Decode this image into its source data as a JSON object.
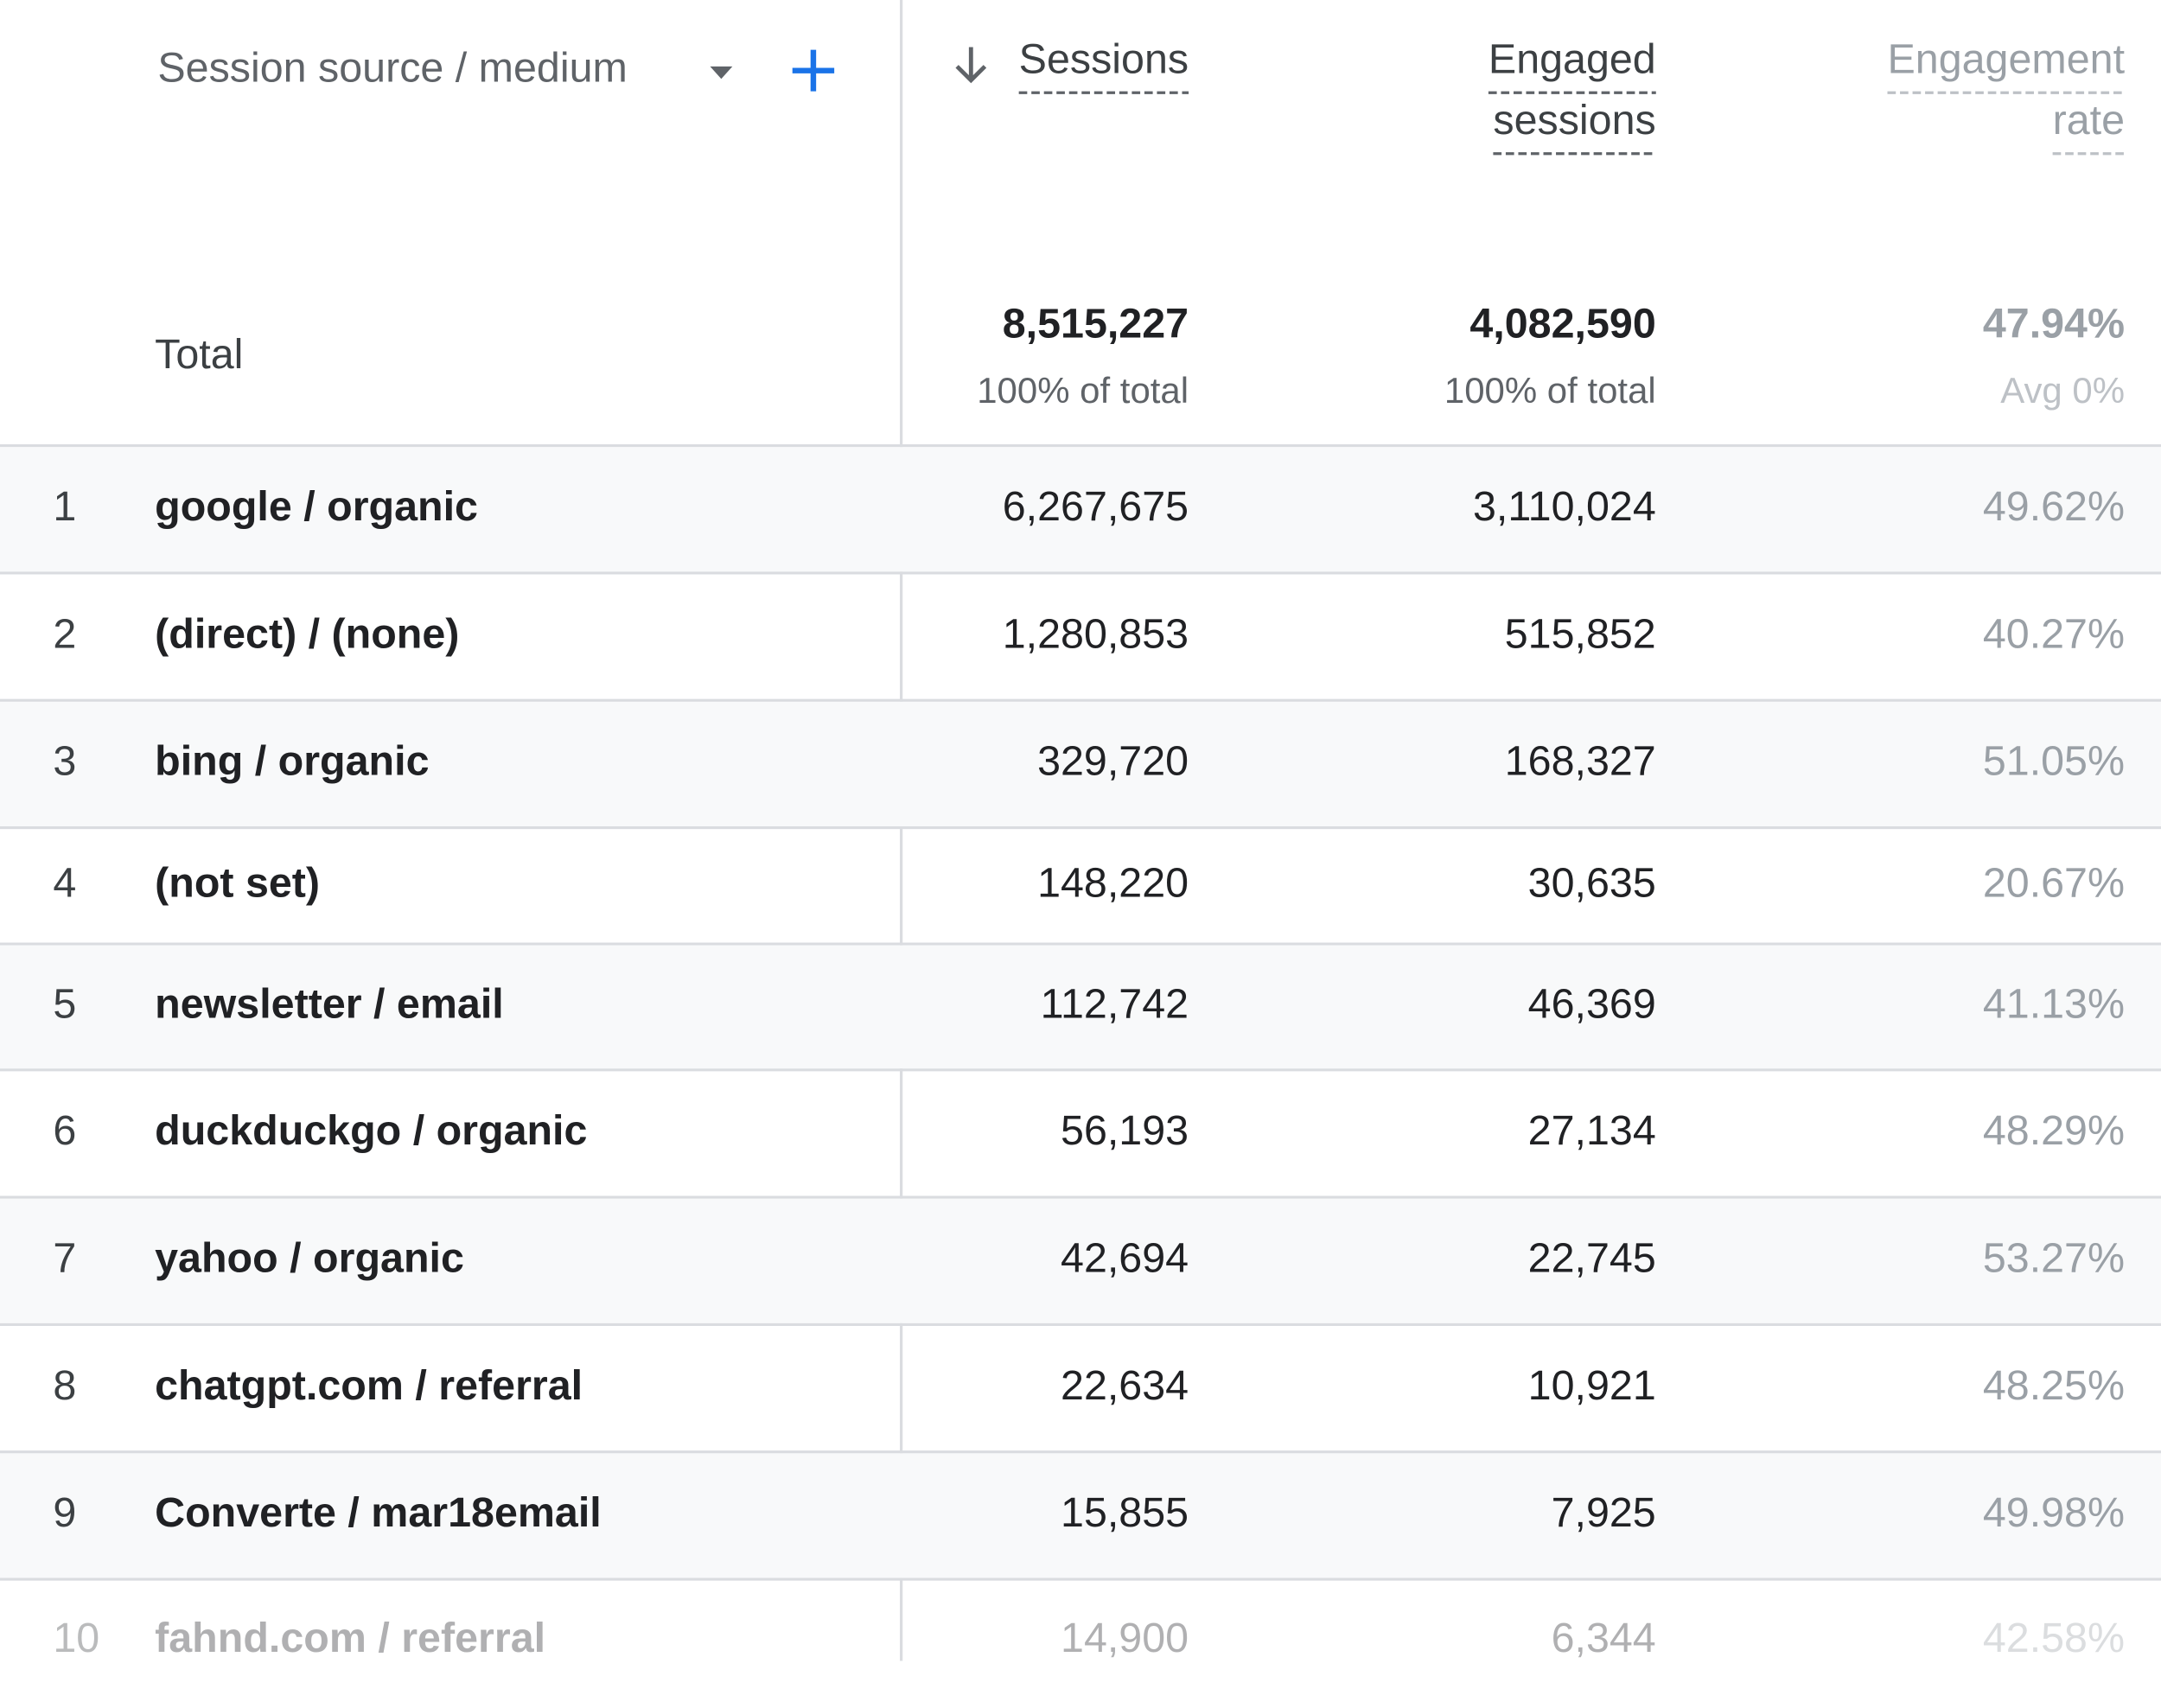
{
  "header": {
    "dimension": "Session source / medium",
    "columns": [
      {
        "lines": [
          "Sessions"
        ]
      },
      {
        "lines": [
          "Engaged",
          "sessions"
        ]
      },
      {
        "lines": [
          "Engagement",
          "rate"
        ]
      }
    ]
  },
  "total": {
    "label": "Total",
    "values": [
      "8,515,227",
      "4,082,590",
      "47.94%"
    ],
    "notes": [
      "100% of total",
      "100% of total",
      "Avg 0%"
    ]
  },
  "rows": [
    {
      "rank": 1,
      "source": "google / organic",
      "values": [
        "6,267,675",
        "3,110,024",
        "49.62%"
      ]
    },
    {
      "rank": 2,
      "source": "(direct) / (none)",
      "values": [
        "1,280,853",
        "515,852",
        "40.27%"
      ]
    },
    {
      "rank": 3,
      "source": "bing / organic",
      "values": [
        "329,720",
        "168,327",
        "51.05%"
      ]
    },
    {
      "rank": 4,
      "source": "(not set)",
      "values": [
        "148,220",
        "30,635",
        "20.67%"
      ]
    },
    {
      "rank": 5,
      "source": "newsletter / email",
      "values": [
        "112,742",
        "46,369",
        "41.13%"
      ]
    },
    {
      "rank": 6,
      "source": "duckduckgo / organic",
      "values": [
        "56,193",
        "27,134",
        "48.29%"
      ]
    },
    {
      "rank": 7,
      "source": "yahoo / organic",
      "values": [
        "42,694",
        "22,745",
        "53.27%"
      ]
    },
    {
      "rank": 8,
      "source": "chatgpt.com / referral",
      "values": [
        "22,634",
        "10,921",
        "48.25%"
      ]
    },
    {
      "rank": 9,
      "source": "Converte / mar18email",
      "values": [
        "15,855",
        "7,925",
        "49.98%"
      ]
    },
    {
      "rank": 10,
      "source": "fahnd.com / referral",
      "values": [
        "14,900",
        "6,344",
        "42.58%"
      ]
    }
  ]
}
